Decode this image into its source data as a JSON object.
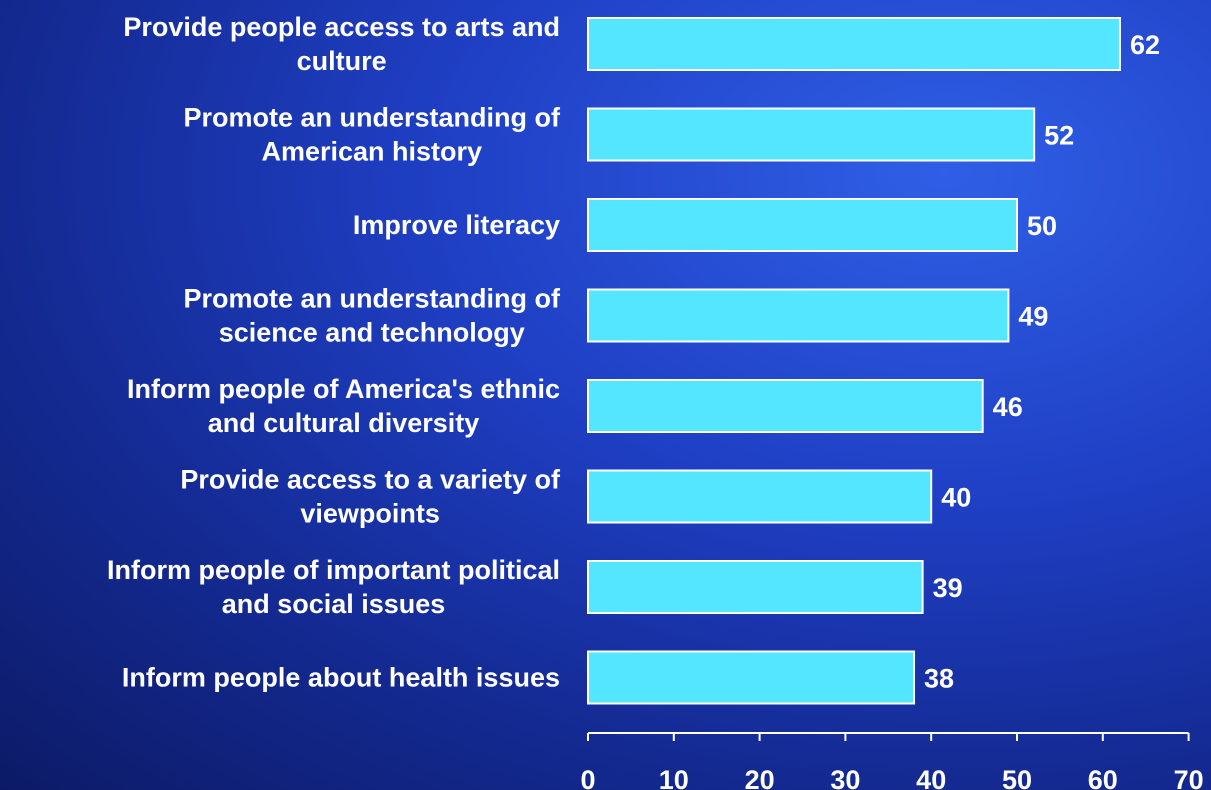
{
  "chart_data": {
    "type": "bar",
    "orientation": "horizontal",
    "categories": [
      [
        "Provide people access to arts and",
        "culture"
      ],
      [
        "Promote an understanding of",
        "American history"
      ],
      [
        "Improve literacy"
      ],
      [
        "Promote an understanding of",
        "science and technology"
      ],
      [
        "Inform people of America's ethnic",
        "and cultural diversity"
      ],
      [
        "Provide access to a variety of",
        "viewpoints"
      ],
      [
        "Inform people of important political",
        "and social issues"
      ],
      [
        "Inform people about health issues"
      ]
    ],
    "values": [
      62,
      52,
      50,
      49,
      46,
      40,
      39,
      38
    ],
    "value_labels": [
      "62",
      "52",
      "50",
      "49",
      "46",
      "40",
      "39",
      "38"
    ],
    "xlim": [
      0,
      70
    ],
    "x_ticks": [
      0,
      10,
      20,
      30,
      40,
      50,
      60,
      70
    ],
    "x_tick_labels": [
      "0",
      "10",
      "20",
      "30",
      "40",
      "50",
      "60",
      "70"
    ],
    "grid": false,
    "legend": "none",
    "bar_color": "#55e6ff",
    "bar_edge_color": "#ffffff",
    "text_color": "#ffffff"
  }
}
